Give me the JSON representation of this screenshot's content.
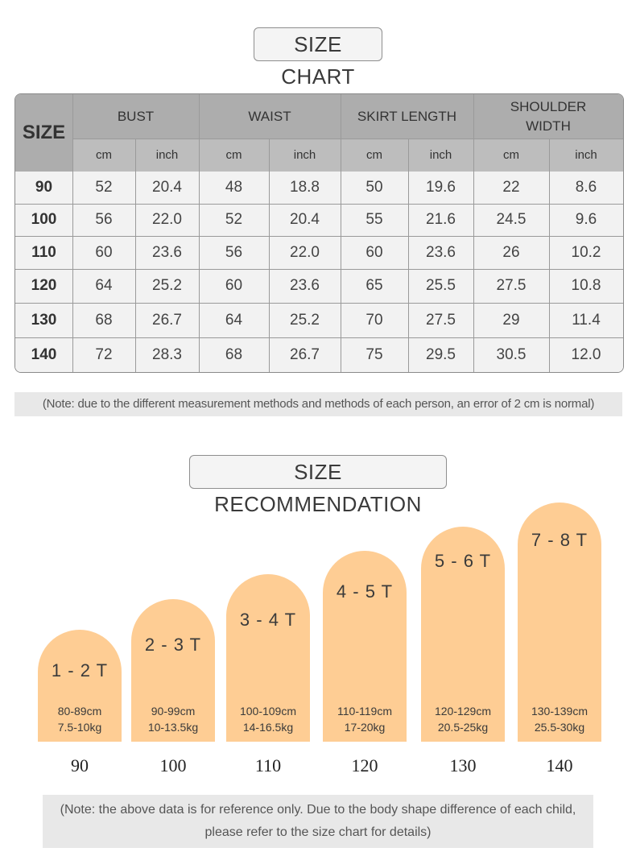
{
  "title_chart": "SIZE CHART",
  "title_reco": "SIZE RECOMMENDATION",
  "table": {
    "size_header": "SIZE",
    "groups": [
      "BUST",
      "WAIST",
      "SKIRT LENGTH",
      "SHOULDER WIDTH"
    ],
    "units": [
      "cm",
      "inch",
      "cm",
      "inch",
      "cm",
      "inch",
      "cm",
      "inch"
    ],
    "rows": [
      [
        "90",
        "52",
        "20.4",
        "48",
        "18.8",
        "50",
        "19.6",
        "22",
        "8.6"
      ],
      [
        "100",
        "56",
        "22.0",
        "52",
        "20.4",
        "55",
        "21.6",
        "24.5",
        "9.6"
      ],
      [
        "110",
        "60",
        "23.6",
        "56",
        "22.0",
        "60",
        "23.6",
        "26",
        "10.2"
      ],
      [
        "120",
        "64",
        "25.2",
        "60",
        "23.6",
        "65",
        "25.5",
        "27.5",
        "10.8"
      ],
      [
        "130",
        "68",
        "26.7",
        "64",
        "25.2",
        "70",
        "27.5",
        "29",
        "11.4"
      ],
      [
        "140",
        "72",
        "28.3",
        "68",
        "26.7",
        "75",
        "29.5",
        "30.5",
        "12.0"
      ]
    ]
  },
  "note_chart": "(Note: due to the different measurement methods and methods of each person, an error of 2 cm is normal)",
  "recommendations": [
    {
      "age": "1 - 2 T",
      "height": "80-89cm",
      "weight": "7.5-10kg",
      "size": "90"
    },
    {
      "age": "2 - 3 T",
      "height": "90-99cm",
      "weight": "10-13.5kg",
      "size": "100"
    },
    {
      "age": "3 - 4 T",
      "height": "100-109cm",
      "weight": "14-16.5kg",
      "size": "110"
    },
    {
      "age": "4 - 5 T",
      "height": "110-119cm",
      "weight": "17-20kg",
      "size": "120"
    },
    {
      "age": "5 - 6 T",
      "height": "120-129cm",
      "weight": "20.5-25kg",
      "size": "130"
    },
    {
      "age": "7 - 8 T",
      "height": "130-139cm",
      "weight": "25.5-30kg",
      "size": "140"
    }
  ],
  "note_reco_line1": "(Note: the above data is for reference only. Due to the body shape difference of each child,",
  "note_reco_line2": "please refer to the size chart for details)",
  "colors": {
    "bar": "#fecd94",
    "header": "#adadad",
    "subheader": "#bdbdbd",
    "note_bg": "#e8e8e8"
  }
}
